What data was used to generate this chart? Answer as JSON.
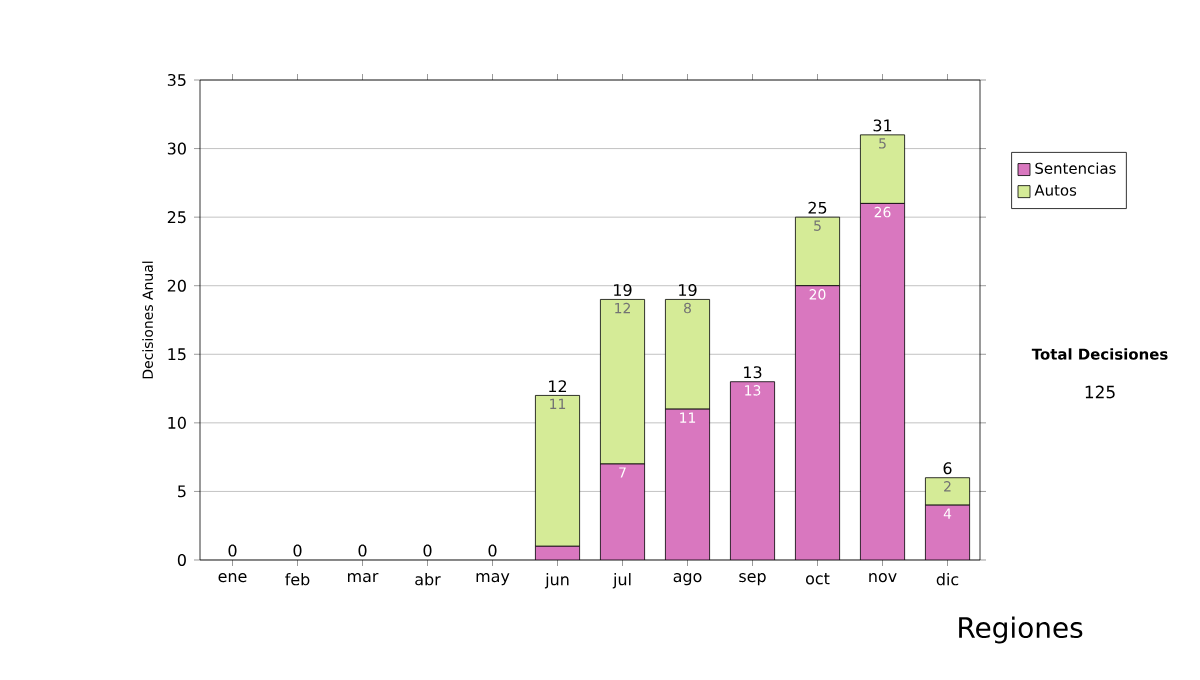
{
  "chart_data": {
    "type": "bar",
    "stacked": true,
    "categories": [
      "ene",
      "feb",
      "mar",
      "abr",
      "may",
      "jun",
      "jul",
      "ago",
      "sep",
      "oct",
      "nov",
      "dic"
    ],
    "series": [
      {
        "name": "Sentencias",
        "color": "#d977bf",
        "values": [
          0,
          0,
          0,
          0,
          0,
          1,
          7,
          11,
          13,
          20,
          26,
          4
        ],
        "value_labels": [
          null,
          null,
          null,
          null,
          null,
          null,
          "7",
          "11",
          "13",
          "20",
          "26",
          "4"
        ]
      },
      {
        "name": "Autos",
        "color": "#d5eb97",
        "values": [
          0,
          0,
          0,
          0,
          0,
          11,
          12,
          8,
          0,
          5,
          5,
          2
        ],
        "value_labels": [
          null,
          null,
          null,
          null,
          null,
          "11",
          "12",
          "8",
          null,
          "5",
          "5",
          "2"
        ]
      }
    ],
    "totals": [
      "0",
      "0",
      "0",
      "0",
      "0",
      "12",
      "19",
      "19",
      "13",
      "25",
      "31",
      "6"
    ],
    "ylabel": "Decisiones Anual",
    "ylim": [
      0,
      35
    ],
    "yticks": [
      0,
      5,
      10,
      15,
      20,
      25,
      30,
      35
    ],
    "grid": "y",
    "legend": "right",
    "annotations": [
      "Total Decisiones",
      "125",
      "Regiones"
    ]
  }
}
